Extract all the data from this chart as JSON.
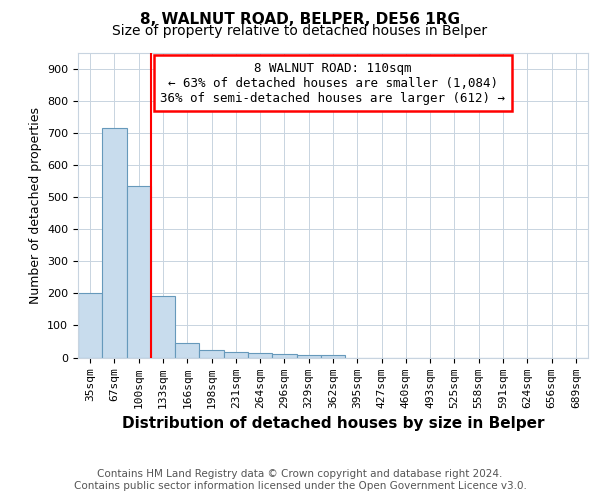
{
  "title": "8, WALNUT ROAD, BELPER, DE56 1RG",
  "subtitle": "Size of property relative to detached houses in Belper",
  "xlabel": "Distribution of detached houses by size in Belper",
  "ylabel": "Number of detached properties",
  "footer_line1": "Contains HM Land Registry data © Crown copyright and database right 2024.",
  "footer_line2": "Contains public sector information licensed under the Open Government Licence v3.0.",
  "bins": [
    "35sqm",
    "67sqm",
    "100sqm",
    "133sqm",
    "166sqm",
    "198sqm",
    "231sqm",
    "264sqm",
    "296sqm",
    "329sqm",
    "362sqm",
    "395sqm",
    "427sqm",
    "460sqm",
    "493sqm",
    "525sqm",
    "558sqm",
    "591sqm",
    "624sqm",
    "656sqm",
    "689sqm"
  ],
  "values": [
    200,
    715,
    535,
    193,
    45,
    22,
    16,
    13,
    10,
    8,
    8,
    0,
    0,
    0,
    0,
    0,
    0,
    0,
    0,
    0,
    0
  ],
  "bar_color": "#c8dced",
  "bar_edge_color": "#6699bb",
  "red_line_x": 2.5,
  "annotation_text_line1": "8 WALNUT ROAD: 110sqm",
  "annotation_text_line2": "← 63% of detached houses are smaller (1,084)",
  "annotation_text_line3": "36% of semi-detached houses are larger (612) →",
  "ylim": [
    0,
    950
  ],
  "yticks": [
    0,
    100,
    200,
    300,
    400,
    500,
    600,
    700,
    800,
    900
  ],
  "background_color": "#ffffff",
  "plot_bg_color": "#ffffff",
  "grid_color": "#c8d4e0",
  "title_fontsize": 11,
  "subtitle_fontsize": 10,
  "xlabel_fontsize": 11,
  "ylabel_fontsize": 9,
  "tick_fontsize": 8,
  "footer_fontsize": 7.5,
  "ann_fontsize": 9
}
